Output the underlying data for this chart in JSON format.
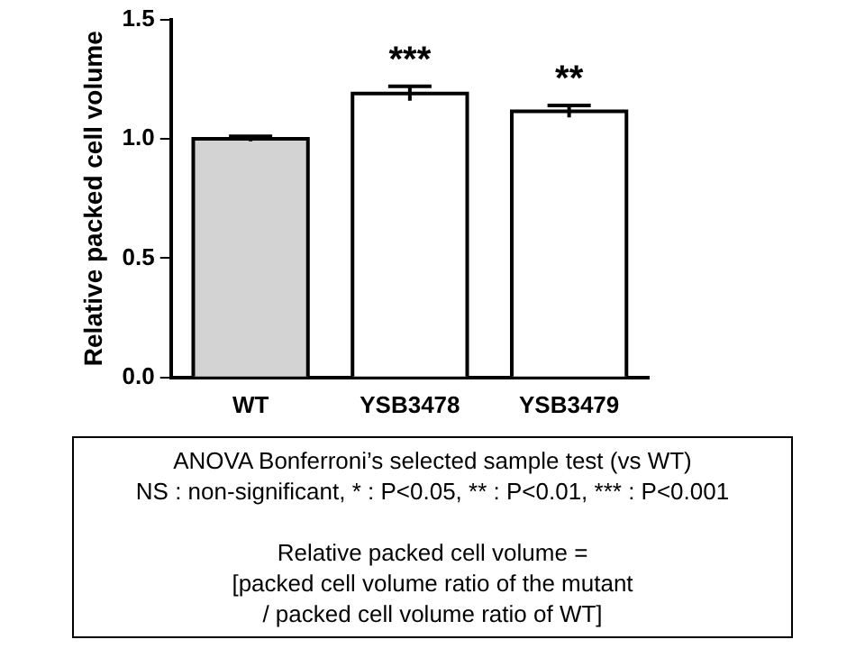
{
  "chart_data": {
    "type": "bar",
    "ylabel": "Relative packed cell volume",
    "categories": [
      "WT",
      "YSB3478",
      "YSB3479"
    ],
    "values": [
      1.0,
      1.19,
      1.115
    ],
    "errors": [
      0.01,
      0.03,
      0.025
    ],
    "colors": [
      "#d3d3d3",
      "#ffffff",
      "#ffffff"
    ],
    "ylim": [
      0,
      1.5
    ],
    "yticks": [
      {
        "value": 0,
        "label": "0.0"
      },
      {
        "value": 0.5,
        "label": "0.5"
      },
      {
        "value": 1,
        "label": "1.0"
      },
      {
        "value": 1.5,
        "label": "1.5"
      }
    ],
    "grid": false,
    "legend": false,
    "annotations": [
      {
        "text": "***",
        "x": "YSB3478",
        "y": 1.22
      },
      {
        "text": "**",
        "x": "YSB3479",
        "y": 1.14
      },
      "ANOVA Bonferroni’s selected sample test (vs WT)",
      "NS : non-significant, * : P<0.05, ** : P<0.01, *** : P<0.001",
      "Relative packed cell volume =",
      "[packed cell volume ratio of the mutant",
      "/ packed cell volume ratio of WT]"
    ]
  }
}
